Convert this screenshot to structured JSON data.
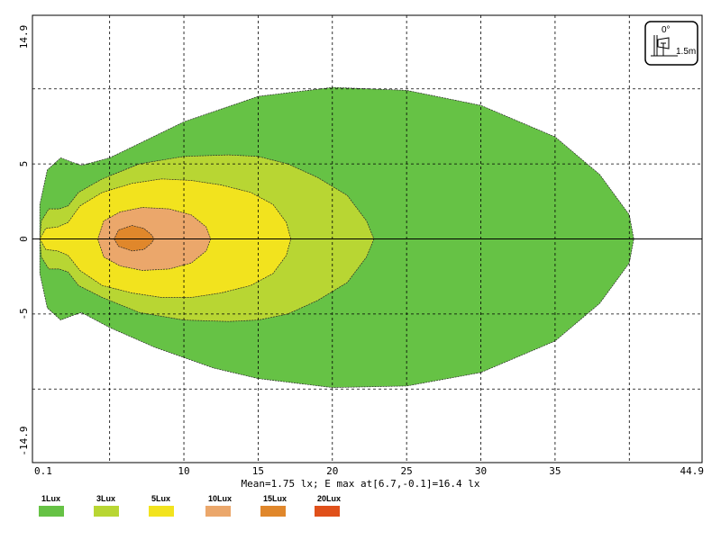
{
  "chart_data": {
    "type": "contour",
    "x_ticks": [
      "0.1",
      "10",
      "15",
      "20",
      "25",
      "30",
      "35",
      "44.9"
    ],
    "x_tick_values": [
      0.1,
      10,
      15,
      20,
      25,
      30,
      35,
      44.9
    ],
    "y_ticks": [
      "14.9",
      "5",
      "0",
      "-5",
      "-14.9"
    ],
    "y_tick_values": [
      14.9,
      5,
      0,
      -5,
      -14.9
    ],
    "xlim": [
      -0.2,
      44.9
    ],
    "ylim": [
      -14.9,
      14.9
    ],
    "grid_x": [
      5,
      10,
      15,
      20,
      25,
      30,
      35,
      40
    ],
    "grid_y": [
      10,
      5,
      -5,
      -10
    ],
    "grid": true,
    "stats_text": "Mean=1.75 lx; E max at[6.7,-0.1]=16.4 lx",
    "legend": [
      {
        "label": "1Lux",
        "color": "#66c245"
      },
      {
        "label": "3Lux",
        "color": "#b8d633"
      },
      {
        "label": "5Lux",
        "color": "#f2e31e"
      },
      {
        "label": "10Lux",
        "color": "#eba76b"
      },
      {
        "label": "15Lux",
        "color": "#e0872b"
      },
      {
        "label": "20Lux",
        "color": "#e0501a"
      }
    ],
    "contours": [
      {
        "level": "1Lux",
        "color": "#66c245",
        "points": [
          [
            0.3,
            0
          ],
          [
            0.3,
            -2.3
          ],
          [
            0.8,
            -4.6
          ],
          [
            1.7,
            -5.4
          ],
          [
            2.5,
            -5.1
          ],
          [
            3.1,
            -4.9
          ],
          [
            5,
            -5.9
          ],
          [
            8,
            -7.2
          ],
          [
            12,
            -8.6
          ],
          [
            15,
            -9.3
          ],
          [
            20,
            -9.9
          ],
          [
            25,
            -9.8
          ],
          [
            30,
            -8.9
          ],
          [
            35,
            -6.8
          ],
          [
            38,
            -4.3
          ],
          [
            40,
            -1.6
          ],
          [
            40.3,
            0
          ],
          [
            40,
            1.6
          ],
          [
            38,
            4.3
          ],
          [
            35,
            6.8
          ],
          [
            30,
            8.9
          ],
          [
            25,
            9.9
          ],
          [
            20,
            10.1
          ],
          [
            15,
            9.5
          ],
          [
            10,
            7.8
          ],
          [
            5,
            5.4
          ],
          [
            3.1,
            4.9
          ],
          [
            2.5,
            5.1
          ],
          [
            1.7,
            5.4
          ],
          [
            0.8,
            4.6
          ],
          [
            0.3,
            2.3
          ]
        ]
      },
      {
        "level": "3Lux",
        "color": "#b8d633",
        "points": [
          [
            0.3,
            0
          ],
          [
            0.4,
            -1.2
          ],
          [
            0.9,
            -2
          ],
          [
            1.6,
            -2
          ],
          [
            2.2,
            -2.2
          ],
          [
            2.9,
            -3.1
          ],
          [
            4.5,
            -3.9
          ],
          [
            7,
            -4.9
          ],
          [
            10,
            -5.4
          ],
          [
            13,
            -5.5
          ],
          [
            15,
            -5.4
          ],
          [
            17,
            -5
          ],
          [
            19,
            -4.1
          ],
          [
            21,
            -2.9
          ],
          [
            22.3,
            -1.2
          ],
          [
            22.8,
            0
          ],
          [
            22.3,
            1.2
          ],
          [
            21,
            2.9
          ],
          [
            19,
            4.1
          ],
          [
            17,
            5
          ],
          [
            15,
            5.5
          ],
          [
            13,
            5.6
          ],
          [
            10,
            5.5
          ],
          [
            7,
            5
          ],
          [
            4.5,
            4
          ],
          [
            2.9,
            3.1
          ],
          [
            2.2,
            2.2
          ],
          [
            1.6,
            2
          ],
          [
            0.9,
            2
          ],
          [
            0.4,
            1.2
          ]
        ]
      },
      {
        "level": "5Lux",
        "color": "#f2e31e",
        "points": [
          [
            0.3,
            0
          ],
          [
            0.7,
            -0.7
          ],
          [
            1.5,
            -0.8
          ],
          [
            2.2,
            -1.1
          ],
          [
            3,
            -2.1
          ],
          [
            4.5,
            -3.1
          ],
          [
            6.5,
            -3.6
          ],
          [
            8.5,
            -3.9
          ],
          [
            10.5,
            -3.9
          ],
          [
            12.5,
            -3.6
          ],
          [
            14.5,
            -3.1
          ],
          [
            16,
            -2.3
          ],
          [
            16.9,
            -1.1
          ],
          [
            17.2,
            0
          ],
          [
            16.9,
            1.1
          ],
          [
            16,
            2.3
          ],
          [
            14.5,
            3.1
          ],
          [
            12.5,
            3.6
          ],
          [
            10.5,
            3.9
          ],
          [
            8.5,
            4
          ],
          [
            6.5,
            3.7
          ],
          [
            4.5,
            3.1
          ],
          [
            3,
            2.2
          ],
          [
            2.2,
            1.1
          ],
          [
            1.5,
            0.8
          ],
          [
            0.7,
            0.7
          ]
        ]
      },
      {
        "level": "10Lux",
        "color": "#eba76b",
        "points": [
          [
            4.2,
            0
          ],
          [
            4.6,
            -1.2
          ],
          [
            5.7,
            -1.8
          ],
          [
            7.2,
            -2.1
          ],
          [
            9,
            -2
          ],
          [
            10.5,
            -1.6
          ],
          [
            11.5,
            -0.8
          ],
          [
            11.8,
            0
          ],
          [
            11.5,
            0.8
          ],
          [
            10.5,
            1.6
          ],
          [
            9,
            2
          ],
          [
            7.2,
            2.1
          ],
          [
            5.7,
            1.8
          ],
          [
            4.6,
            1.2
          ]
        ]
      },
      {
        "level": "15Lux",
        "color": "#e0872b",
        "points": [
          [
            5.3,
            0
          ],
          [
            5.6,
            -0.5
          ],
          [
            6.5,
            -0.8
          ],
          [
            7.3,
            -0.7
          ],
          [
            7.8,
            -0.3
          ],
          [
            8,
            0
          ],
          [
            7.8,
            0.3
          ],
          [
            7.3,
            0.7
          ],
          [
            6.5,
            0.9
          ],
          [
            5.6,
            0.6
          ]
        ]
      }
    ],
    "badge": {
      "angle": "0°",
      "height": "1.5m"
    }
  }
}
